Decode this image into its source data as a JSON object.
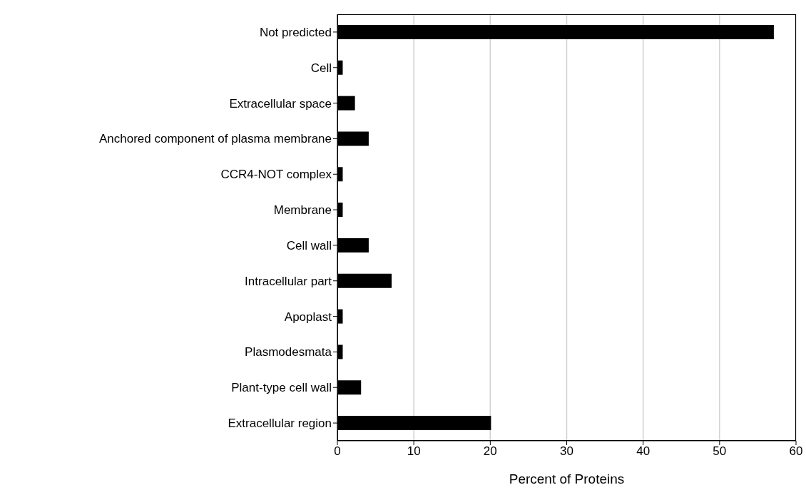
{
  "chart_data": {
    "type": "bar",
    "orientation": "horizontal",
    "xlabel": "Percent of Proteins",
    "categories": [
      "Not predicted",
      "Cell",
      "Extracellular space",
      "Anchored component of plasma membrane",
      "CCR4-NOT complex",
      "Membrane",
      "Cell wall",
      "Intracellular part",
      "Apoplast",
      "Plasmodesmata",
      "Plant-type cell wall",
      "Extracellular region"
    ],
    "values": [
      57.1,
      0.7,
      2.3,
      4.1,
      0.7,
      0.7,
      4.1,
      7.1,
      0.7,
      0.7,
      3.1,
      20.1
    ],
    "color": "#000000",
    "xlim": [
      0,
      60
    ],
    "xticks": [
      0,
      10,
      20,
      30,
      40,
      50,
      60
    ],
    "grid": "x",
    "legend": false
  }
}
